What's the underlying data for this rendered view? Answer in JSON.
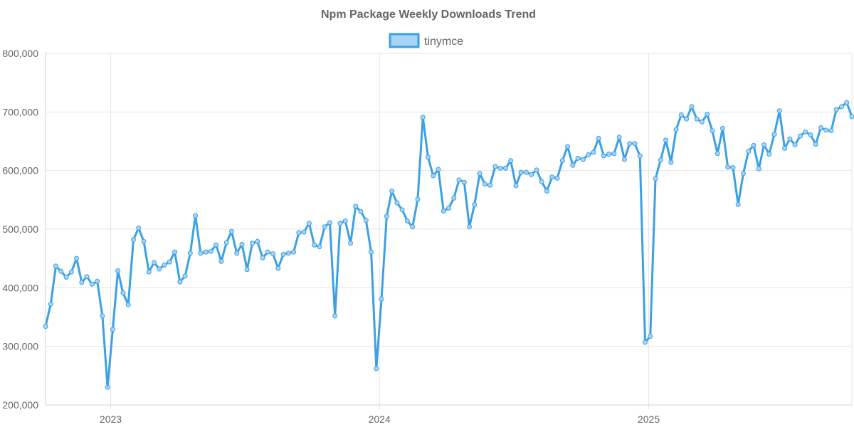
{
  "chart_data": {
    "type": "line",
    "title": "Npm Package Weekly Downloads Trend",
    "legend": {
      "position": "top",
      "entries": [
        "tinymce"
      ]
    },
    "colors": {
      "line": "#3ca0e4",
      "fill": "#a8d4f4",
      "grid": "#e5e5e5",
      "text": "#666666"
    },
    "ylim": [
      200000,
      800000
    ],
    "yticks": [
      200000,
      300000,
      400000,
      500000,
      600000,
      700000,
      800000
    ],
    "ytick_labels": [
      "200,000",
      "300,000",
      "400,000",
      "500,000",
      "600,000",
      "700,000",
      "800,000"
    ],
    "xticks": [
      "2023",
      "2024",
      "2025"
    ],
    "grid": true,
    "series": [
      {
        "name": "tinymce",
        "values": [
          334000,
          372000,
          437000,
          428000,
          418000,
          427000,
          450000,
          409000,
          419000,
          406000,
          411000,
          352000,
          230000,
          329000,
          429000,
          391000,
          371000,
          482000,
          502000,
          479000,
          427000,
          443000,
          432000,
          439000,
          444000,
          461000,
          410000,
          420000,
          459000,
          523000,
          459000,
          461000,
          462000,
          473000,
          445000,
          477000,
          496000,
          459000,
          474000,
          431000,
          476000,
          479000,
          451000,
          461000,
          458000,
          433000,
          457000,
          459000,
          461000,
          494000,
          495000,
          510000,
          473000,
          470000,
          504000,
          511000,
          352000,
          510000,
          514000,
          476000,
          539000,
          530000,
          515000,
          461000,
          262000,
          381000,
          522000,
          565000,
          545000,
          533000,
          514000,
          504000,
          551000,
          691000,
          623000,
          591000,
          602000,
          531000,
          536000,
          553000,
          584000,
          580000,
          504000,
          542000,
          595000,
          577000,
          575000,
          607000,
          604000,
          604000,
          617000,
          574000,
          597000,
          597000,
          593000,
          601000,
          581000,
          565000,
          589000,
          587000,
          617000,
          641000,
          609000,
          621000,
          619000,
          627000,
          631000,
          655000,
          625000,
          628000,
          629000,
          657000,
          619000,
          646000,
          646000,
          625000,
          307000,
          317000,
          586000,
          618000,
          652000,
          614000,
          670000,
          695000,
          688000,
          709000,
          688000,
          683000,
          696000,
          668000,
          629000,
          672000,
          606000,
          605000,
          542000,
          595000,
          633000,
          643000,
          603000,
          644000,
          628000,
          662000,
          702000,
          638000,
          654000,
          644000,
          659000,
          666000,
          661000,
          645000,
          673000,
          669000,
          668000,
          704000,
          709000,
          716000,
          692000
        ]
      }
    ]
  }
}
